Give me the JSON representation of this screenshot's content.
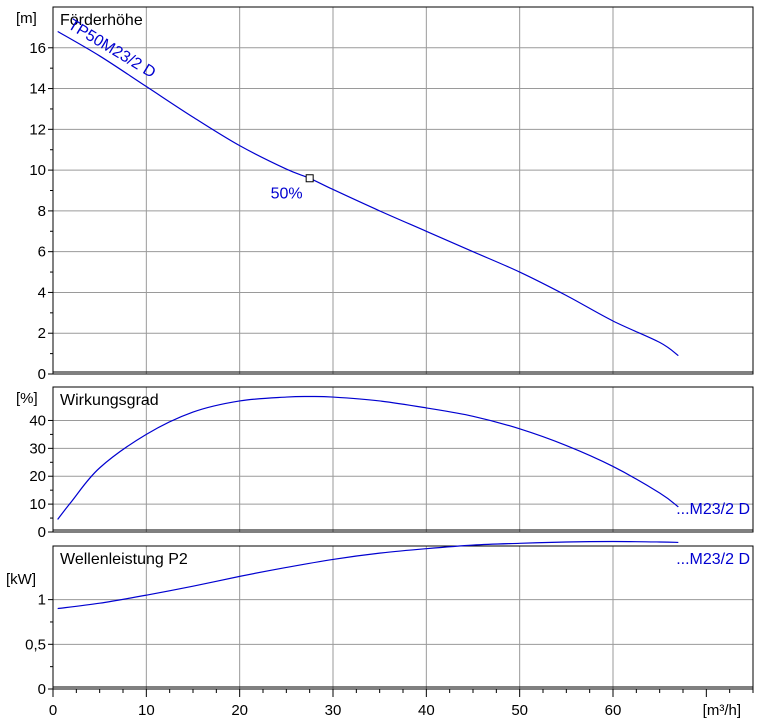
{
  "chart_data": [
    {
      "type": "line",
      "title": "Förderhöhe",
      "unit": "[m]",
      "xlim": [
        0,
        75
      ],
      "ylim": [
        0,
        18
      ],
      "yticks": [
        0,
        2,
        4,
        6,
        8,
        10,
        12,
        14,
        16
      ],
      "grid": true,
      "series": [
        {
          "name": "TP50M23/2 D",
          "color": "#0000d0",
          "x": [
            0.5,
            5,
            10,
            15,
            20,
            25,
            27.5,
            30,
            35,
            40,
            45,
            50,
            55,
            60,
            65,
            67
          ],
          "y": [
            16.8,
            15.6,
            14.1,
            12.6,
            11.2,
            10.05,
            9.6,
            9.05,
            8.0,
            7.0,
            6.0,
            5.0,
            3.85,
            2.6,
            1.55,
            0.9
          ]
        }
      ],
      "marker": {
        "x": 27.5,
        "y": 9.6,
        "label": "50%"
      }
    },
    {
      "type": "line",
      "title": "Wirkungsgrad",
      "unit": "[%]",
      "xlim": [
        0,
        75
      ],
      "ylim": [
        0,
        52
      ],
      "yticks": [
        0,
        10,
        20,
        30,
        40
      ],
      "grid": true,
      "series": [
        {
          "name": "...M23/2 D",
          "color": "#0000d0",
          "x": [
            0.5,
            2,
            5,
            10,
            15,
            20,
            25,
            27.5,
            30,
            35,
            40,
            45,
            50,
            55,
            60,
            65,
            67
          ],
          "y": [
            4.5,
            11,
            23,
            35,
            43,
            47,
            48.4,
            48.6,
            48.4,
            47,
            44.5,
            41.5,
            37,
            31,
            23.5,
            14,
            9
          ]
        }
      ]
    },
    {
      "type": "line",
      "title": "Wellenleistung P2",
      "unit": "[kW]",
      "xlim": [
        0,
        75
      ],
      "ylim": [
        0,
        1.6
      ],
      "yticks": [
        0,
        0.5,
        1
      ],
      "yticklabels": [
        "0",
        "0,5",
        "1"
      ],
      "grid": true,
      "series": [
        {
          "name": "...M23/2 D",
          "color": "#0000d0",
          "x": [
            0.5,
            5,
            10,
            15,
            20,
            25,
            30,
            35,
            40,
            45,
            50,
            55,
            60,
            65,
            67
          ],
          "y": [
            0.9,
            0.96,
            1.05,
            1.15,
            1.26,
            1.36,
            1.45,
            1.52,
            1.57,
            1.61,
            1.63,
            1.645,
            1.65,
            1.645,
            1.64
          ]
        }
      ]
    }
  ],
  "x_axis": {
    "ticks": [
      0,
      10,
      20,
      30,
      40,
      50,
      60
    ],
    "unit": "[m³/h]"
  }
}
